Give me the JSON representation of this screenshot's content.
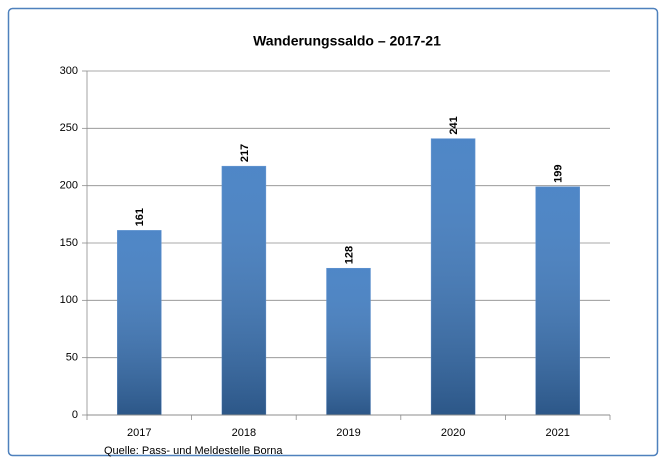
{
  "chart_data": {
    "type": "bar",
    "title": "Wanderungssaldo – 2017-21",
    "categories": [
      "2017",
      "2018",
      "2019",
      "2020",
      "2021"
    ],
    "values": [
      161,
      217,
      128,
      241,
      199
    ],
    "color": "#3f7cc2",
    "ylim": [
      0,
      300
    ],
    "yticks": [
      0,
      50,
      100,
      150,
      200,
      250,
      300
    ],
    "grid": true,
    "source": "Quelle: Pass- und Meldestelle Borna"
  }
}
